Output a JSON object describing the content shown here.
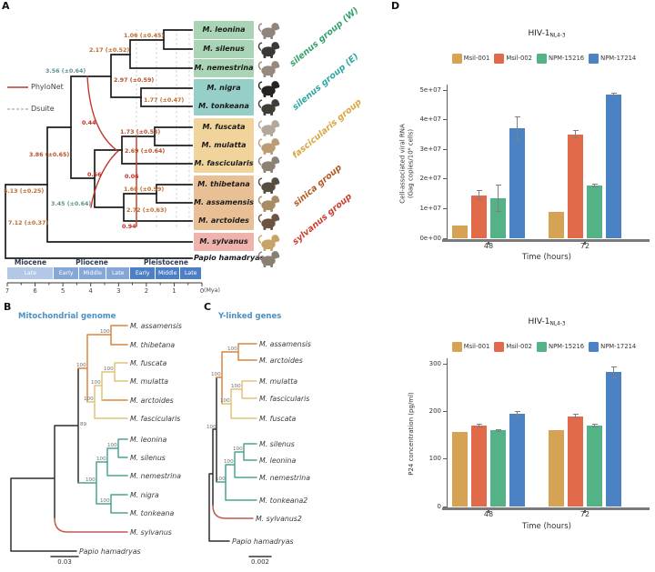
{
  "figure": {
    "panel_letters": {
      "a": "A",
      "b": "B",
      "c": "C",
      "d": "D"
    }
  },
  "panelA": {
    "legend": [
      {
        "label": "PhyloNet",
        "color": "#c0392b",
        "style": "solid"
      },
      {
        "label": "Dsuite",
        "color": "#aaaaaa",
        "style": "dashed"
      }
    ],
    "species": [
      {
        "name": "M. leonina",
        "group": "sw",
        "icon_color": "#8f857c"
      },
      {
        "name": "M. silenus",
        "group": "sw",
        "icon_color": "#3c3835"
      },
      {
        "name": "M. nemestrina",
        "group": "sw",
        "icon_color": "#97897b"
      },
      {
        "name": "M. nigra",
        "group": "se",
        "icon_color": "#262220"
      },
      {
        "name": "M. tonkeana",
        "group": "se",
        "icon_color": "#433d38"
      },
      {
        "name": "M. fuscata",
        "group": "fa",
        "icon_color": "#b3a89c"
      },
      {
        "name": "M. mulatta",
        "group": "fa",
        "icon_color": "#bb9c74"
      },
      {
        "name": "M. fascicularis",
        "group": "fa",
        "icon_color": "#8b8274"
      },
      {
        "name": "M. thibetana",
        "group": "si",
        "icon_color": "#584d42"
      },
      {
        "name": "M. assamensis",
        "group": "si",
        "icon_color": "#a78c66"
      },
      {
        "name": "M. arctoides",
        "group": "si",
        "icon_color": "#6d5342"
      },
      {
        "name": "M. sylvanus",
        "group": "sy",
        "icon_color": "#c7a368"
      },
      {
        "name": "Papio hamadryas",
        "group": "out",
        "icon_color": "#8a7f72"
      }
    ],
    "groups": [
      {
        "id": "sw",
        "label": "silenus group (W)",
        "text_color": "#35a06d",
        "box_color": "#a9d4b6"
      },
      {
        "id": "se",
        "label": "silenus group (E)",
        "text_color": "#2fa7a2",
        "box_color": "#96cfc7"
      },
      {
        "id": "fa",
        "label": "fascicularis group",
        "text_color": "#d9a63e",
        "box_color": "#f1d49c"
      },
      {
        "id": "si",
        "label": "sinica group",
        "text_color": "#b2591f",
        "box_color": "#e9c095"
      },
      {
        "id": "sy",
        "label": "sylvanus group",
        "text_color": "#cd3e30",
        "box_color": "#efb3ae"
      },
      {
        "id": "out",
        "label": "",
        "text_color": "#222222",
        "box_color": ""
      }
    ],
    "node_ages": [
      {
        "id": "n106",
        "text": "1.06 (±0.45)",
        "color": "#bf6a2c"
      },
      {
        "id": "n217",
        "text": "2.17 (±0.52)",
        "color": "#bf6a2c"
      },
      {
        "id": "n297",
        "text": "2.97 (±0.59)",
        "color": "#b94f2a"
      },
      {
        "id": "n177",
        "text": "1.77 (±0.47)",
        "color": "#bf6a2c"
      },
      {
        "id": "n173",
        "text": "1.73 (±0.53)",
        "color": "#b94f2a"
      },
      {
        "id": "n269",
        "text": "2.69 (±0.64)",
        "color": "#b94f2a"
      },
      {
        "id": "n160",
        "text": "1.60 (±0.59)",
        "color": "#bf6a2c"
      },
      {
        "id": "n272",
        "text": "2.72 (±0.63)",
        "color": "#bf6a2c"
      },
      {
        "id": "n386",
        "text": "3.86 (±0.65)",
        "color": "#b94f2a"
      },
      {
        "id": "n513",
        "text": "5.13 (±0.25)",
        "color": "#bf6a2c"
      },
      {
        "id": "n712",
        "text": "7.12 (±0.37)",
        "color": "#bf6a2c"
      },
      {
        "id": "n356",
        "text": "3.56 (±0.64)",
        "color": "#5d9390"
      },
      {
        "id": "n345",
        "text": "3.45 (±0.64)",
        "color": "#5d9390"
      }
    ],
    "reticulations": [
      {
        "id": "r044",
        "text": "0.44"
      },
      {
        "id": "r056",
        "text": "0.56"
      },
      {
        "id": "r006",
        "text": "0.06"
      },
      {
        "id": "r094",
        "text": "0.94"
      }
    ],
    "timeline": {
      "epochs": [
        {
          "name": "Miocene",
          "subs": [
            "Late"
          ],
          "band_color": "#b3c8e6"
        },
        {
          "name": "Pliocene",
          "subs": [
            "Early",
            "Middle",
            "Late"
          ],
          "band_color": "#84a7d8"
        },
        {
          "name": "Pleistocene",
          "subs": [
            "Early",
            "Middle",
            "Late"
          ],
          "band_color": "#4d7fc6"
        }
      ],
      "ticks": [
        "7",
        "6",
        "5",
        "4",
        "3",
        "2",
        "1",
        "0"
      ],
      "unit": "(Mya)"
    }
  },
  "panelB": {
    "title": "Mitochondrial genome",
    "taxa": [
      "M. assamensis",
      "M. thibetana",
      "M. fuscata",
      "M. mulatta",
      "M. arctoides",
      "M. fascicularis",
      "M. leonina",
      "M. silenus",
      "M. nemestrina",
      "M. nigra",
      "M. tonkeana",
      "M. sylvanus",
      "Papio hamadryas"
    ],
    "supports": [
      {
        "id": "b1",
        "value": "100"
      },
      {
        "id": "b2",
        "value": "100"
      },
      {
        "id": "b3",
        "value": "100"
      },
      {
        "id": "b4",
        "value": "100"
      },
      {
        "id": "b5",
        "value": "100"
      },
      {
        "id": "b6",
        "value": "100"
      },
      {
        "id": "b7",
        "value": "100"
      },
      {
        "id": "b8",
        "value": "100"
      },
      {
        "id": "b9",
        "value": "100"
      },
      {
        "id": "b10",
        "value": "89"
      }
    ],
    "scale": "0.03"
  },
  "panelC": {
    "title": "Y-linked genes",
    "taxa": [
      "M. assamensis",
      "M. arctoides",
      "M. mulatta",
      "M. fascicularis",
      "M. fuscata",
      "M. silenus",
      "M. leonina",
      "M. nemestrina",
      "M. tonkeana2",
      "M. sylvanus2",
      "Papio hamadryas"
    ],
    "supports": [
      {
        "id": "c1",
        "value": "100"
      },
      {
        "id": "c2",
        "value": "100"
      },
      {
        "id": "c3",
        "value": "100"
      },
      {
        "id": "c4",
        "value": "100"
      },
      {
        "id": "c5",
        "value": "100"
      },
      {
        "id": "c6",
        "value": "100"
      },
      {
        "id": "c7",
        "value": "100"
      },
      {
        "id": "c8",
        "value": "100"
      }
    ],
    "scale": "0.002"
  },
  "chart_data": [
    {
      "type": "bar",
      "panel": "D-top",
      "title_main": "HIV-1",
      "title_sub": "NL4-3",
      "categories": [
        "48",
        "72"
      ],
      "xlabel": "Time (hours)",
      "ylabel_lines": [
        "Cell-associated viral RNA",
        "(Gag copies/10⁶ cells)"
      ],
      "ylim": [
        0,
        50000000
      ],
      "yticks": [
        "0e+00",
        "1e+07",
        "2e+07",
        "3e+07",
        "4e+07",
        "5e+07"
      ],
      "grid": false,
      "legend_position": "top",
      "series": [
        {
          "name": "Msil-001",
          "color": "#d6a354",
          "values": [
            4300000,
            8900000
          ],
          "errors": [
            0,
            0
          ]
        },
        {
          "name": "Msil-002",
          "color": "#e06a4a",
          "values": [
            14500000,
            35000000
          ],
          "errors": [
            1500000,
            1200000
          ]
        },
        {
          "name": "NPM-15216",
          "color": "#54b386",
          "values": [
            13500000,
            17800000
          ],
          "errors": [
            4500000,
            500000
          ]
        },
        {
          "name": "NPM-17214",
          "color": "#4b82c4",
          "values": [
            37000000,
            48500000
          ],
          "errors": [
            4000000,
            500000
          ]
        }
      ]
    },
    {
      "type": "bar",
      "panel": "D-bottom",
      "title_main": "HIV-1",
      "title_sub": "NL4-3",
      "categories": [
        "48",
        "72"
      ],
      "xlabel": "Time (hours)",
      "ylabel_lines": [
        "P24 concentration (pg/ml)"
      ],
      "ylim": [
        0,
        300
      ],
      "yticks": [
        "0",
        "100",
        "200",
        "300"
      ],
      "grid": false,
      "legend_position": "top",
      "series": [
        {
          "name": "Msil-001",
          "color": "#d6a354",
          "values": [
            157,
            160
          ],
          "errors": [
            0,
            0
          ]
        },
        {
          "name": "Msil-002",
          "color": "#e06a4a",
          "values": [
            170,
            190
          ],
          "errors": [
            2,
            4
          ]
        },
        {
          "name": "NPM-15216",
          "color": "#54b386",
          "values": [
            160,
            170
          ],
          "errors": [
            2,
            2
          ]
        },
        {
          "name": "NPM-17214",
          "color": "#4b82c4",
          "values": [
            195,
            282
          ],
          "errors": [
            4,
            12
          ]
        }
      ]
    }
  ]
}
